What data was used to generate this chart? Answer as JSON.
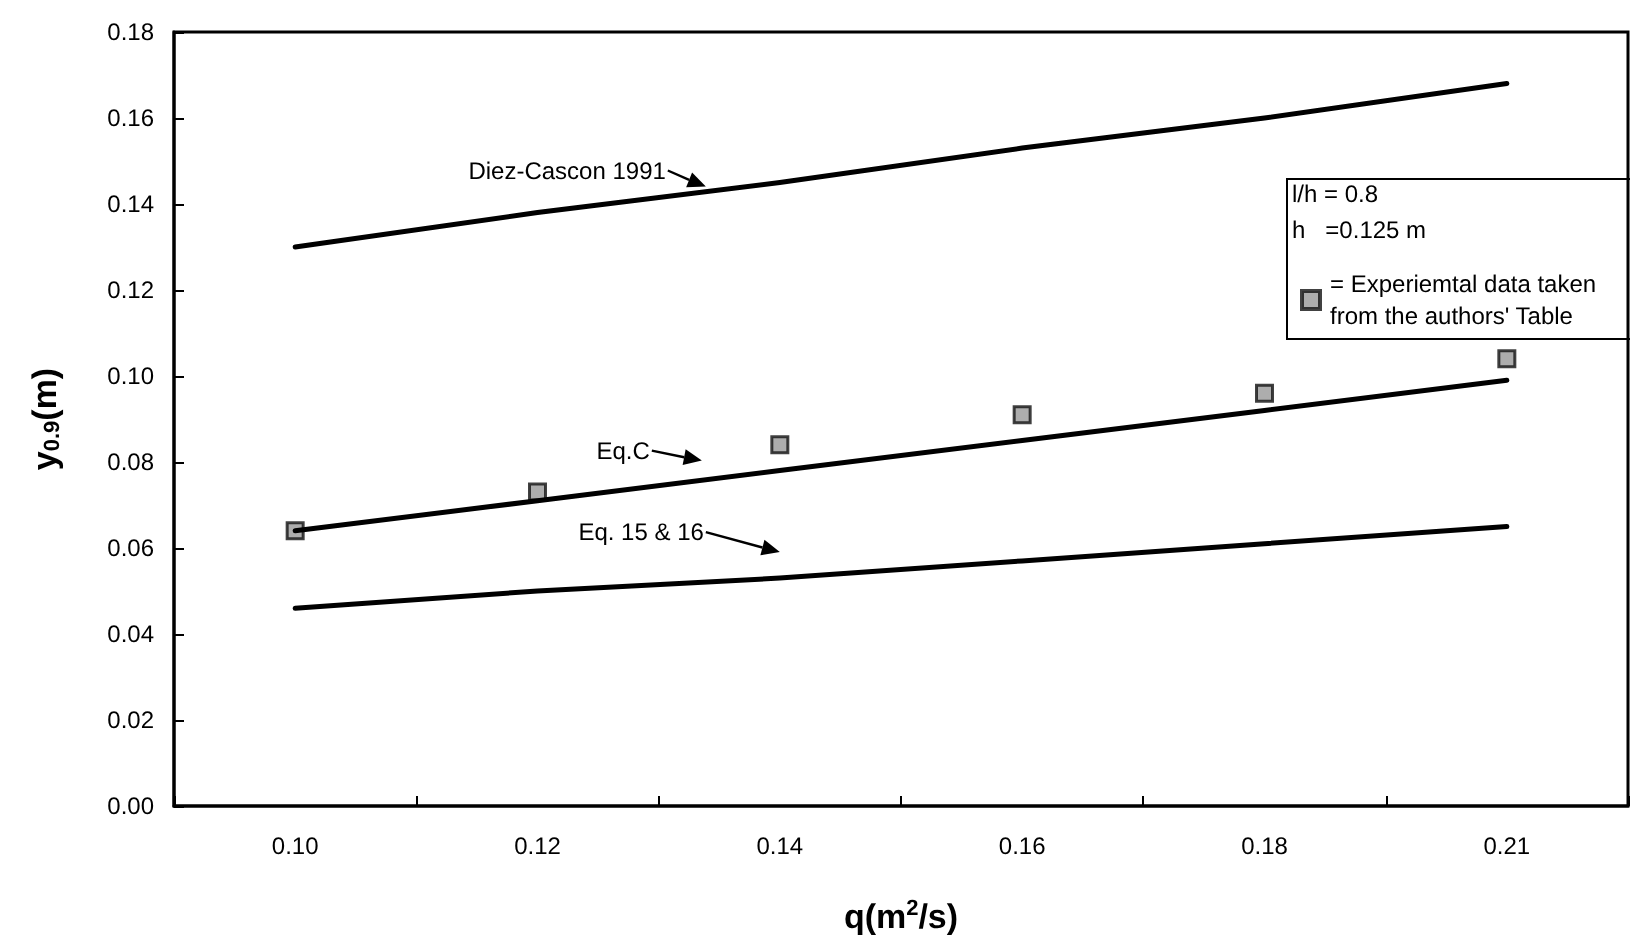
{
  "chart_data": {
    "type": "line",
    "xlabel": "q(m$^{2}$/s)",
    "ylabel": "y$_{0.9}$(m)",
    "categories": [
      "0.10",
      "0.12",
      "0.14",
      "0.16",
      "0.18",
      "0.21"
    ],
    "series": [
      {
        "color": "#000000",
        "values": [
          0.13,
          0.138,
          0.145,
          0.153,
          0.16,
          0.168
        ]
      },
      {
        "color": "#000000",
        "values": [
          0.064,
          0.071,
          0.078,
          0.085,
          0.092,
          0.099
        ]
      },
      {
        "color": "#000000",
        "values": [
          0.046,
          0.05,
          0.053,
          0.057,
          0.061,
          0.065
        ]
      },
      {
        "name": "= Experiemtal data taken from the authors' Table",
        "type": "scatter",
        "marker": "square",
        "color": "#999999",
        "values": [
          0.064,
          0.073,
          0.084,
          0.091,
          0.096,
          0.104
        ]
      }
    ],
    "ylim": [
      0,
      0.18
    ],
    "yticks": [
      {
        "value": 0,
        "label": "0.00"
      },
      {
        "value": 0.02,
        "label": "0.02"
      },
      {
        "value": 0.04,
        "label": "0.04"
      },
      {
        "value": 0.06,
        "label": "0.06"
      },
      {
        "value": 0.08,
        "label": "0.08"
      },
      {
        "value": 0.1,
        "label": "0.10"
      },
      {
        "value": 0.12,
        "label": "0.12"
      },
      {
        "value": 0.14,
        "label": "0.14"
      },
      {
        "value": 0.16,
        "label": "0.16"
      },
      {
        "value": 0.18,
        "label": "0.18"
      }
    ],
    "annotations": [
      "l/h = 0.8",
      "h   =0.125 m",
      "Diez-Cascon 1991",
      "Eq.C",
      "Eq. 15 & 16"
    ],
    "legend": "right",
    "grid": false,
    "marker": "none",
    "line_style": "solid"
  }
}
